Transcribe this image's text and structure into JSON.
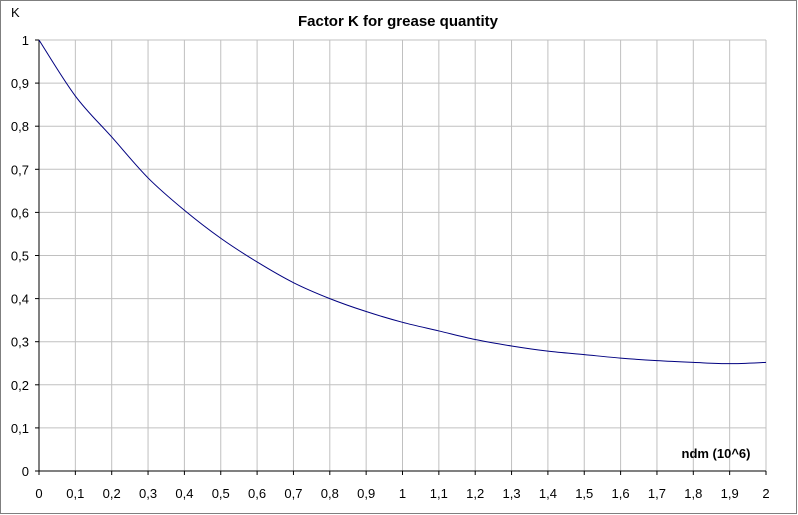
{
  "chart_data": {
    "type": "line",
    "title": "Factor K for grease quantity",
    "xlabel": "ndm (10^6)",
    "ylabel": "K",
    "xlim": [
      0,
      2
    ],
    "ylim": [
      0,
      1
    ],
    "grid": true,
    "x_ticks": [
      "0",
      "0,1",
      "0,2",
      "0,3",
      "0,4",
      "0,5",
      "0,6",
      "0,7",
      "0,8",
      "0,9",
      "1",
      "1,1",
      "1,2",
      "1,3",
      "1,4",
      "1,5",
      "1,6",
      "1,7",
      "1,8",
      "1,9",
      "2"
    ],
    "y_ticks": [
      "0",
      "0,1",
      "0,2",
      "0,3",
      "0,4",
      "0,5",
      "0,6",
      "0,7",
      "0,8",
      "0,9",
      "1"
    ],
    "series": [
      {
        "color": "#000080",
        "x": [
          0,
          0.1,
          0.2,
          0.3,
          0.4,
          0.5,
          0.6,
          0.7,
          0.8,
          0.9,
          1.0,
          1.1,
          1.2,
          1.3,
          1.4,
          1.5,
          1.6,
          1.7,
          1.8,
          1.9,
          2.0
        ],
        "y": [
          1.0,
          0.87,
          0.775,
          0.68,
          0.605,
          0.54,
          0.485,
          0.437,
          0.4,
          0.37,
          0.345,
          0.325,
          0.305,
          0.29,
          0.278,
          0.27,
          0.262,
          0.256,
          0.252,
          0.249,
          0.252
        ]
      }
    ]
  }
}
